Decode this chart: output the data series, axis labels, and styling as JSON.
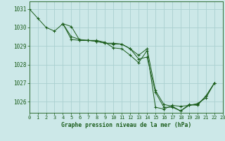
{
  "title": "Graphe pression niveau de la mer (hPa)",
  "bg_color": "#cce8e8",
  "grid_color": "#aad0d0",
  "line_color": "#1a5c1a",
  "marker_color": "#1a5c1a",
  "xmin": 0,
  "xmax": 23,
  "ymin": 1025.4,
  "ymax": 1031.4,
  "yticks": [
    1026,
    1027,
    1028,
    1029,
    1030,
    1031
  ],
  "xticks": [
    0,
    1,
    2,
    3,
    4,
    5,
    6,
    7,
    8,
    9,
    10,
    11,
    12,
    13,
    14,
    15,
    16,
    17,
    18,
    19,
    20,
    21,
    22,
    23
  ],
  "series": [
    [
      1031.0,
      1030.5,
      1030.0,
      1029.8,
      1030.2,
      1030.05,
      1029.3,
      1029.3,
      1029.3,
      1029.2,
      1028.9,
      1028.85,
      1028.5,
      1028.1,
      1028.75,
      1025.7,
      1025.6,
      1025.8,
      1025.75,
      1025.8,
      1025.9,
      1026.2,
      1027.0,
      null
    ],
    [
      null,
      null,
      null,
      null,
      1030.2,
      1029.5,
      1029.35,
      1029.3,
      1029.25,
      1029.15,
      1029.15,
      1029.1,
      1028.85,
      1028.5,
      1028.85,
      1026.6,
      1025.85,
      1025.75,
      1025.5,
      1025.85,
      1025.8,
      1026.3,
      1027.0,
      null
    ],
    [
      null,
      null,
      null,
      null,
      1030.2,
      1029.35,
      1029.3,
      1029.3,
      1029.25,
      1029.15,
      1029.1,
      1029.1,
      1028.85,
      1028.3,
      1028.4,
      1026.5,
      1025.7,
      1025.7,
      1025.5,
      1025.8,
      1025.85,
      1026.3,
      1027.0,
      null
    ]
  ]
}
